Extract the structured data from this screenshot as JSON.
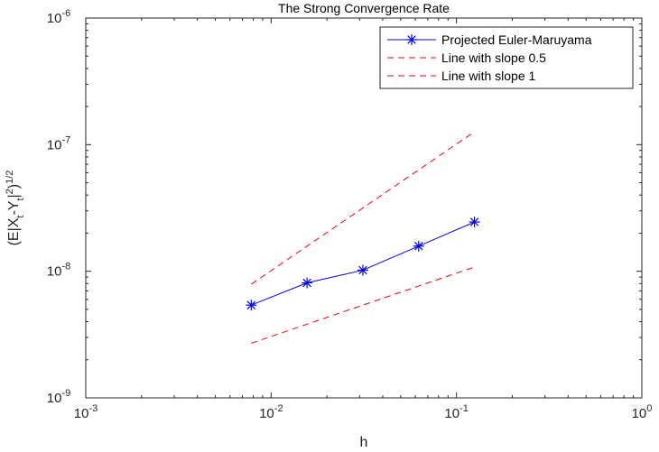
{
  "chart_data": {
    "type": "line",
    "title": "The Strong Convergence Rate",
    "xlabel": "h",
    "ylabel": {
      "prefix": "(E|X",
      "sub1": "t",
      "mid": "-Y",
      "sub2": "t",
      "bar": "|",
      "sup1": "2",
      "close": ")",
      "sup2": "1/2"
    },
    "x_scale": "log",
    "y_scale": "log",
    "xlim": [
      0.001,
      1
    ],
    "ylim": [
      1e-09,
      1e-06
    ],
    "x_ticks": [
      {
        "value": 0.001,
        "base": "10",
        "exp": "-3"
      },
      {
        "value": 0.01,
        "base": "10",
        "exp": "-2"
      },
      {
        "value": 0.1,
        "base": "10",
        "exp": "-1"
      },
      {
        "value": 1,
        "base": "10",
        "exp": "0"
      }
    ],
    "y_ticks": [
      {
        "value": 1e-09,
        "base": "10",
        "exp": "-9"
      },
      {
        "value": 1e-08,
        "base": "10",
        "exp": "-8"
      },
      {
        "value": 1e-07,
        "base": "10",
        "exp": "-7"
      },
      {
        "value": 1e-06,
        "base": "10",
        "exp": "-6"
      }
    ],
    "grid": false,
    "legend_position": "top-right",
    "series": [
      {
        "name": "Projected Euler-Maruyama",
        "color": "#0000ff",
        "line_style": "solid",
        "marker": "asterisk",
        "x": [
          0.0078125,
          0.015625,
          0.03125,
          0.0625,
          0.125
        ],
        "y": [
          5.4e-09,
          8.1e-09,
          1.02e-08,
          1.58e-08,
          2.45e-08
        ]
      },
      {
        "name": "Line with slope 0.5",
        "color": "#ff0000",
        "line_style": "dashed",
        "marker": "none",
        "x": [
          0.0078125,
          0.015625,
          0.03125,
          0.0625,
          0.125
        ],
        "y": [
          2.7e-09,
          3.82e-09,
          5.4e-09,
          7.64e-09,
          1.08e-08
        ]
      },
      {
        "name": "Line with slope 1",
        "color": "#ff0000",
        "line_style": "dashed",
        "marker": "none",
        "x": [
          0.0078125,
          0.015625,
          0.03125,
          0.0625,
          0.125
        ],
        "y": [
          7.9e-09,
          1.58e-08,
          3.16e-08,
          6.32e-08,
          1.264e-07
        ]
      }
    ]
  }
}
